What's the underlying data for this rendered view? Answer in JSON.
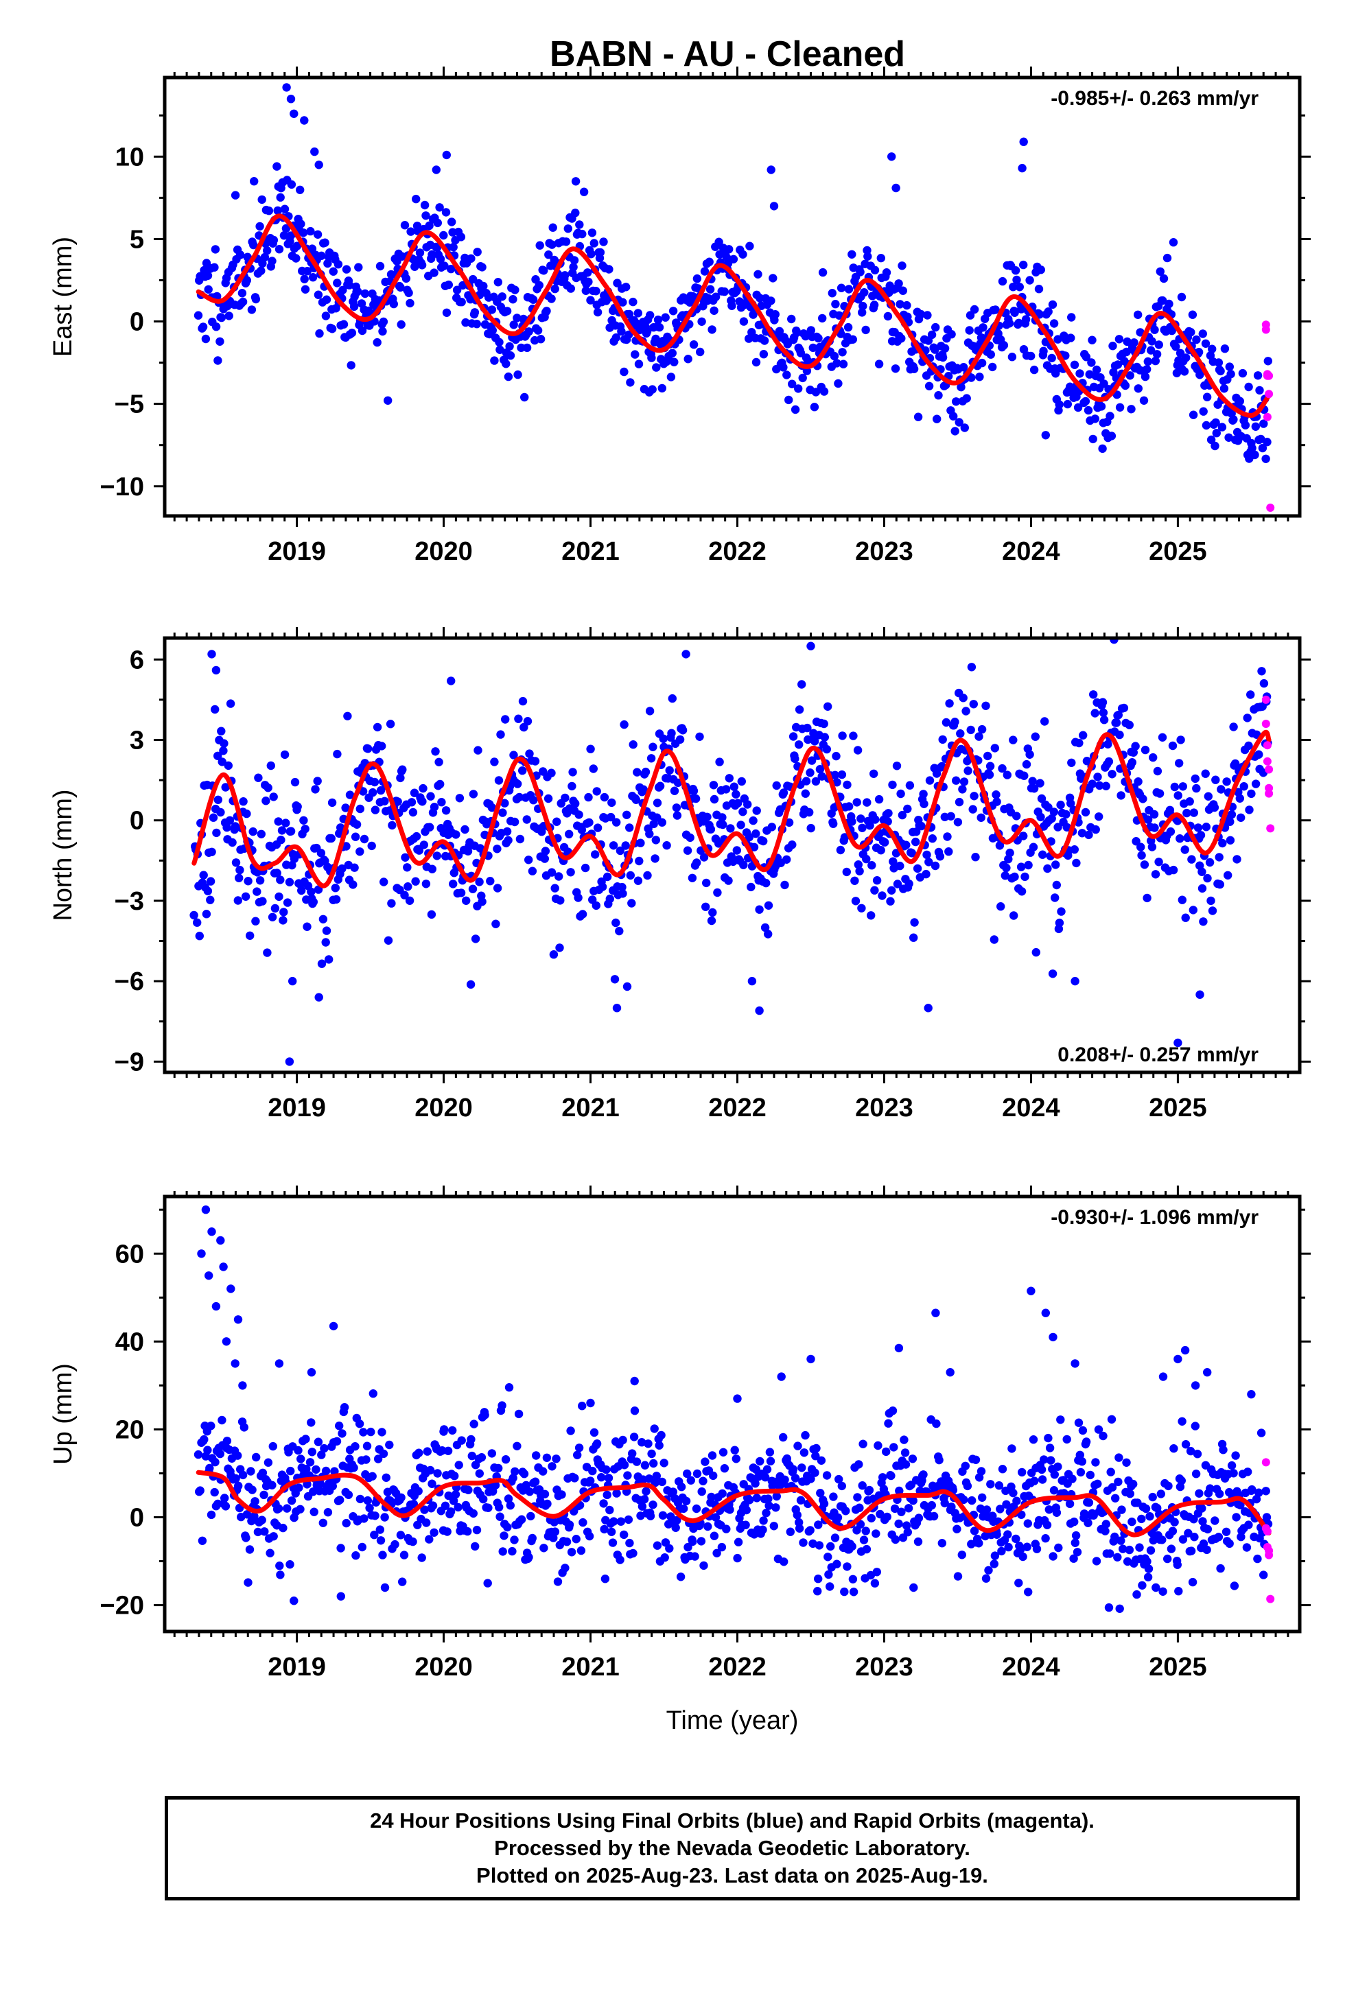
{
  "title": "BABN  - AU - Cleaned",
  "footer": {
    "line1": "24 Hour Positions Using Final Orbits (blue) and Rapid Orbits (magenta).",
    "line2": "Processed by the Nevada Geodetic Laboratory.",
    "line3": "Plotted on 2025-Aug-23. Last data on 2025-Aug-19."
  },
  "colors": {
    "final": "#0000ff",
    "rapid": "#ff00ff",
    "model": "#ff0000"
  },
  "chart_data": [
    {
      "type": "scatter",
      "component": "East",
      "ylabel": "East (mm)",
      "xlabel": "",
      "xlim": [
        2018.1,
        2025.83
      ],
      "ylim": [
        -11.8,
        14.8
      ],
      "xticks": [
        "2019",
        "2020",
        "2021",
        "2022",
        "2023",
        "2024",
        "2025"
      ],
      "yticks": [
        -10,
        -5,
        0,
        5,
        10
      ],
      "rate": "-0.985+/- 0.263 mm/yr",
      "rate_position": "top-right",
      "model": {
        "x": [
          2018.33,
          2018.5,
          2018.7,
          2018.88,
          2019.1,
          2019.3,
          2019.5,
          2019.7,
          2019.88,
          2020.1,
          2020.3,
          2020.5,
          2020.7,
          2020.88,
          2021.1,
          2021.3,
          2021.5,
          2021.7,
          2021.88,
          2022.1,
          2022.3,
          2022.5,
          2022.7,
          2022.88,
          2023.1,
          2023.3,
          2023.5,
          2023.7,
          2023.88,
          2024.1,
          2024.3,
          2024.5,
          2024.7,
          2024.88,
          2025.1,
          2025.3,
          2025.5,
          2025.62
        ],
        "y": [
          1.8,
          1.3,
          3.8,
          6.4,
          3.8,
          1.1,
          0.2,
          2.9,
          5.4,
          3.2,
          0.4,
          -0.7,
          1.9,
          4.4,
          2.2,
          -0.7,
          -1.7,
          0.8,
          3.4,
          1.2,
          -1.6,
          -2.7,
          -0.2,
          2.5,
          0.3,
          -2.5,
          -3.7,
          -1.2,
          1.5,
          -0.7,
          -3.6,
          -4.7,
          -2.2,
          0.5,
          -1.8,
          -4.6,
          -5.7,
          -4.5
        ]
      },
      "seasonal": {
        "base": 1.6,
        "trend": -0.985,
        "amp": 2.6,
        "peak_phase": 0.88,
        "noise": 1.5,
        "n_final": 1150,
        "seed": 11
      },
      "rapid_points": {
        "x": [
          2025.6,
          2025.6,
          2025.61,
          2025.61,
          2025.61,
          2025.62,
          2025.62,
          2025.63
        ],
        "y": [
          -0.2,
          -0.5,
          -3.2,
          -3.3,
          -5.8,
          -4.4,
          -3.3,
          -11.3
        ]
      },
      "outliers": {
        "x": [
          2018.93,
          2018.96,
          2018.98,
          2019.05,
          2019.12,
          2019.15,
          2019.95,
          2020.02,
          2020.9,
          2022.23,
          2022.25,
          2023.05,
          2023.08,
          2023.95,
          2023.94,
          2024.97,
          2019.62,
          2020.55,
          2021.4,
          2024.1
        ],
        "y": [
          14.2,
          13.5,
          12.6,
          12.2,
          10.3,
          9.5,
          9.2,
          10.1,
          8.5,
          9.2,
          7.0,
          10.0,
          8.1,
          10.9,
          9.3,
          4.8,
          -4.8,
          -4.6,
          -4.3,
          -6.9
        ]
      }
    },
    {
      "type": "scatter",
      "component": "North",
      "ylabel": "North (mm)",
      "xlabel": "",
      "xlim": [
        2018.1,
        2025.83
      ],
      "ylim": [
        -9.4,
        6.8
      ],
      "xticks": [
        "2019",
        "2020",
        "2021",
        "2022",
        "2023",
        "2024",
        "2025"
      ],
      "yticks": [
        -9,
        -6,
        -3,
        0,
        3,
        6
      ],
      "rate": "0.208+/- 0.257 mm/yr",
      "rate_position": "bottom-right",
      "model": {
        "x": [
          2018.3,
          2018.5,
          2018.7,
          2018.85,
          2019.0,
          2019.2,
          2019.4,
          2019.55,
          2019.8,
          2020.0,
          2020.2,
          2020.4,
          2020.55,
          2020.8,
          2021.0,
          2021.2,
          2021.4,
          2021.55,
          2021.8,
          2022.0,
          2022.2,
          2022.4,
          2022.55,
          2022.8,
          2023.0,
          2023.2,
          2023.4,
          2023.55,
          2023.8,
          2024.0,
          2024.2,
          2024.4,
          2024.55,
          2024.8,
          2025.0,
          2025.2,
          2025.4,
          2025.58,
          2025.62
        ],
        "y": [
          -1.6,
          1.7,
          -1.5,
          -1.6,
          -1.0,
          -2.4,
          0.9,
          2.0,
          -1.5,
          -0.8,
          -2.2,
          1.0,
          2.2,
          -1.3,
          -0.6,
          -2.0,
          1.1,
          2.5,
          -1.2,
          -0.5,
          -1.8,
          1.4,
          2.6,
          -0.9,
          -0.2,
          -1.5,
          1.6,
          2.9,
          -0.7,
          0.0,
          -1.3,
          1.9,
          3.1,
          -0.5,
          0.2,
          -1.2,
          1.4,
          3.2,
          3.0
        ]
      },
      "seasonal": {
        "base": -0.2,
        "trend": 0.208,
        "amp": 1.6,
        "peak_phase": 0.55,
        "noise": 1.5,
        "n_final": 1150,
        "seed": 23
      },
      "rapid_points": {
        "x": [
          2025.6,
          2025.6,
          2025.61,
          2025.61,
          2025.62,
          2025.62,
          2025.62,
          2025.63
        ],
        "y": [
          4.5,
          3.6,
          2.8,
          2.2,
          1.9,
          1.2,
          1.0,
          -0.3
        ]
      },
      "outliers": {
        "x": [
          2018.42,
          2018.45,
          2018.95,
          2018.97,
          2019.15,
          2021.18,
          2021.25,
          2022.1,
          2022.15,
          2022.5,
          2023.3,
          2024.3,
          2025.15,
          2025.0,
          2021.65,
          2020.05
        ],
        "y": [
          6.2,
          5.6,
          -9.0,
          -6.0,
          -6.6,
          -7.0,
          -6.2,
          -6.0,
          -7.1,
          6.5,
          -7.0,
          -6.0,
          -6.5,
          -8.3,
          6.2,
          5.2
        ]
      }
    },
    {
      "type": "scatter",
      "component": "Up",
      "ylabel": "Up (mm)",
      "xlabel": "Time (year)",
      "xlim": [
        2018.1,
        2025.83
      ],
      "ylim": [
        -26,
        73
      ],
      "xticks": [
        "2019",
        "2020",
        "2021",
        "2022",
        "2023",
        "2024",
        "2025"
      ],
      "yticks": [
        -20,
        0,
        20,
        40,
        60
      ],
      "rate": "-0.930+/- 1.096 mm/yr",
      "rate_position": "top-right",
      "model": {
        "x": [
          2018.33,
          2018.5,
          2018.6,
          2018.75,
          2018.95,
          2019.15,
          2019.4,
          2019.6,
          2019.75,
          2020.0,
          2020.25,
          2020.4,
          2020.5,
          2020.75,
          2021.0,
          2021.25,
          2021.4,
          2021.5,
          2021.7,
          2022.0,
          2022.3,
          2022.45,
          2022.7,
          2023.0,
          2023.3,
          2023.45,
          2023.7,
          2024.0,
          2024.3,
          2024.45,
          2024.7,
          2025.0,
          2025.3,
          2025.45,
          2025.62
        ],
        "y": [
          10.2,
          9.0,
          4.0,
          1.5,
          7.5,
          8.8,
          9.2,
          3.0,
          0.5,
          7.0,
          7.8,
          8.3,
          5.0,
          0.2,
          5.8,
          6.8,
          7.2,
          4.0,
          -0.8,
          5.0,
          6.0,
          5.5,
          -2.5,
          4.2,
          5.0,
          5.3,
          -3.0,
          3.5,
          4.5,
          4.2,
          -4.0,
          2.5,
          3.5,
          3.8,
          -3.6
        ]
      },
      "seasonal": {
        "base": 4.5,
        "trend": -0.93,
        "amp": 3.5,
        "peak_phase": 0.25,
        "noise": 7.5,
        "n_final": 1150,
        "seed": 37
      },
      "rapid_points": {
        "x": [
          2025.6,
          2025.6,
          2025.61,
          2025.61,
          2025.62,
          2025.62,
          2025.63
        ],
        "y": [
          12.5,
          -2.5,
          -3.2,
          -6.8,
          -7.6,
          -8.6,
          -18.6
        ]
      },
      "outliers": {
        "x": [
          2018.35,
          2018.38,
          2018.42,
          2018.48,
          2018.5,
          2018.55,
          2018.6,
          2018.45,
          2018.4,
          2018.52,
          2018.58,
          2018.63,
          2019.25,
          2020.0,
          2021.0,
          2021.3,
          2022.0,
          2022.3,
          2022.5,
          2023.1,
          2023.35,
          2023.45,
          2024.0,
          2024.1,
          2024.15,
          2024.3,
          2024.9,
          2025.0,
          2025.2,
          2025.5,
          2025.05,
          2025.12,
          2018.98,
          2019.3,
          2019.6,
          2020.3,
          2021.1,
          2022.55,
          2023.2,
          2023.98,
          2024.85,
          2018.88,
          2019.1
        ],
        "y": [
          60,
          70,
          65,
          63,
          57,
          52,
          45,
          48,
          55,
          40,
          35,
          30,
          43.5,
          19.5,
          26,
          31,
          27,
          32,
          36,
          38.5,
          46.5,
          33,
          51.5,
          46.5,
          41,
          35,
          32,
          36,
          33,
          28,
          38,
          30,
          -19,
          -18,
          -16,
          -15,
          -14,
          -14,
          -16,
          -17,
          -16,
          35,
          33
        ]
      }
    }
  ]
}
